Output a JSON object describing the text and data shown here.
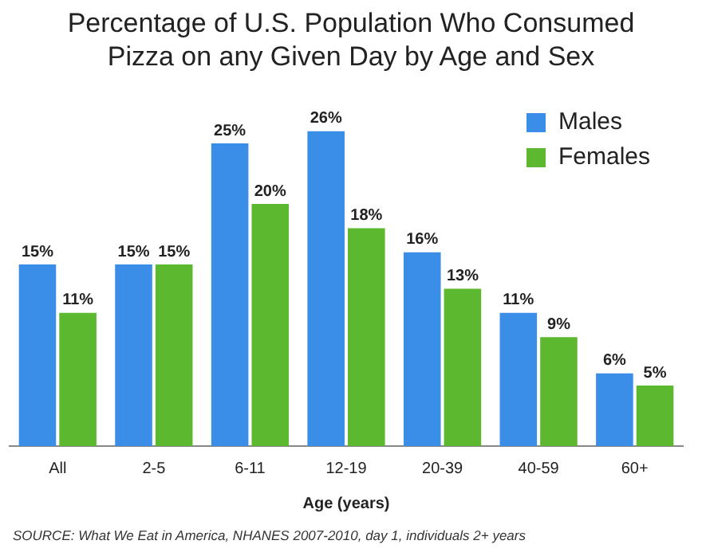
{
  "chart_data": {
    "type": "bar",
    "title": "Percentage of U.S. Population Who Consumed Pizza on any Given Day by Age and Sex",
    "xlabel": "Age (years)",
    "categories": [
      "All",
      "2-5",
      "6-11",
      "12-19",
      "20-39",
      "40-59",
      "60+"
    ],
    "series": [
      {
        "name": "Males",
        "color": "#3b8ee8",
        "values": [
          15,
          15,
          25,
          26,
          16,
          11,
          6
        ],
        "value_labels": [
          "15%",
          "15%",
          "25%",
          "26%",
          "16%",
          "11%",
          "6%"
        ]
      },
      {
        "name": "Females",
        "color": "#5cb82e",
        "values": [
          11,
          15,
          20,
          18,
          13,
          9,
          5
        ],
        "value_labels": [
          "11%",
          "15%",
          "20%",
          "18%",
          "13%",
          "9%",
          "5%"
        ]
      }
    ],
    "legend": "top right",
    "grid": false,
    "annotations": [
      "SOURCE: What We Eat in America, NHANES 2007-2010, day 1, individuals 2+ years"
    ]
  }
}
